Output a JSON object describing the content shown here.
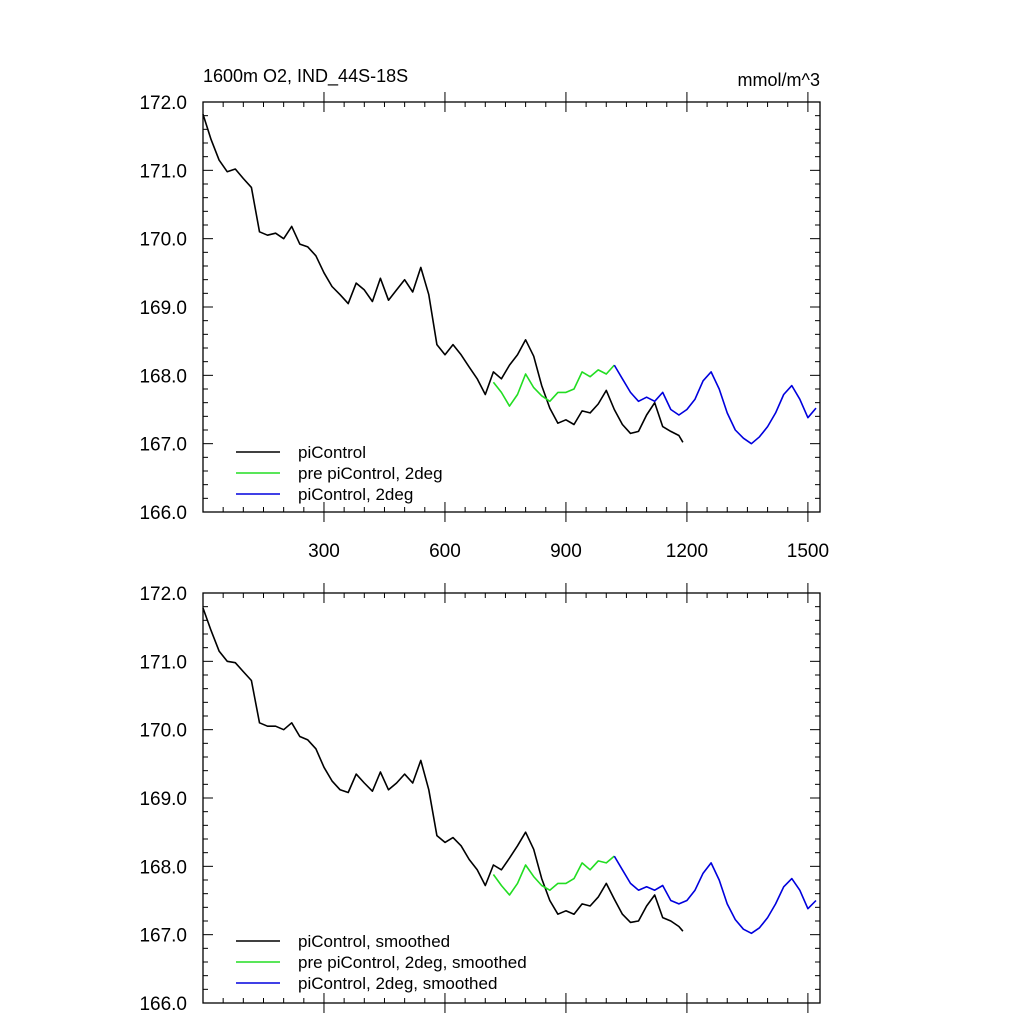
{
  "chart_data": [
    {
      "type": "line",
      "title": "1600m O2, IND_44S-18S",
      "units": "mmol/m^3",
      "xlim": [
        0,
        1530
      ],
      "ylim": [
        166.0,
        172.0
      ],
      "x_ticks": [
        300,
        600,
        900,
        1200,
        1500
      ],
      "x_tick_labels": [
        "300",
        "600",
        "900",
        "1200",
        "1500"
      ],
      "y_ticks": [
        166,
        167,
        168,
        169,
        170,
        171,
        172
      ],
      "y_tick_labels": [
        "166.0",
        "167.0",
        "168.0",
        "169.0",
        "170.0",
        "171.0",
        "172.0"
      ],
      "legend_position": "bottom-left",
      "series": [
        {
          "name": "piControl",
          "color": "#000000",
          "points": [
            [
              0,
              171.82
            ],
            [
              20,
              171.45
            ],
            [
              40,
              171.15
            ],
            [
              60,
              170.98
            ],
            [
              80,
              171.02
            ],
            [
              100,
              170.88
            ],
            [
              120,
              170.75
            ],
            [
              140,
              170.1
            ],
            [
              160,
              170.05
            ],
            [
              180,
              170.08
            ],
            [
              200,
              170.0
            ],
            [
              220,
              170.18
            ],
            [
              240,
              169.92
            ],
            [
              260,
              169.88
            ],
            [
              280,
              169.75
            ],
            [
              300,
              169.5
            ],
            [
              320,
              169.3
            ],
            [
              340,
              169.18
            ],
            [
              360,
              169.05
            ],
            [
              380,
              169.35
            ],
            [
              400,
              169.25
            ],
            [
              420,
              169.08
            ],
            [
              440,
              169.42
            ],
            [
              460,
              169.1
            ],
            [
              480,
              169.25
            ],
            [
              500,
              169.4
            ],
            [
              520,
              169.22
            ],
            [
              540,
              169.58
            ],
            [
              560,
              169.18
            ],
            [
              580,
              168.45
            ],
            [
              600,
              168.3
            ],
            [
              620,
              168.45
            ],
            [
              640,
              168.3
            ],
            [
              660,
              168.12
            ],
            [
              680,
              167.95
            ],
            [
              700,
              167.72
            ],
            [
              720,
              168.05
            ],
            [
              740,
              167.95
            ],
            [
              760,
              168.15
            ],
            [
              780,
              168.3
            ],
            [
              800,
              168.52
            ],
            [
              820,
              168.28
            ],
            [
              840,
              167.85
            ],
            [
              860,
              167.52
            ],
            [
              880,
              167.3
            ],
            [
              900,
              167.35
            ],
            [
              920,
              167.28
            ],
            [
              940,
              167.48
            ],
            [
              960,
              167.45
            ],
            [
              980,
              167.58
            ],
            [
              1000,
              167.78
            ],
            [
              1020,
              167.5
            ],
            [
              1040,
              167.28
            ],
            [
              1060,
              167.15
            ],
            [
              1080,
              167.18
            ],
            [
              1100,
              167.42
            ],
            [
              1120,
              167.6
            ],
            [
              1140,
              167.25
            ],
            [
              1160,
              167.18
            ],
            [
              1180,
              167.12
            ],
            [
              1190,
              167.02
            ]
          ]
        },
        {
          "name": "pre piControl, 2deg",
          "color": "#22dd22",
          "points": [
            [
              720,
              167.9
            ],
            [
              740,
              167.75
            ],
            [
              760,
              167.55
            ],
            [
              780,
              167.72
            ],
            [
              800,
              168.02
            ],
            [
              820,
              167.82
            ],
            [
              840,
              167.7
            ],
            [
              860,
              167.62
            ],
            [
              880,
              167.75
            ],
            [
              900,
              167.75
            ],
            [
              920,
              167.8
            ],
            [
              940,
              168.05
            ],
            [
              960,
              167.98
            ],
            [
              980,
              168.08
            ],
            [
              1000,
              168.02
            ],
            [
              1020,
              168.15
            ]
          ]
        },
        {
          "name": "piControl, 2deg",
          "color": "#0000dd",
          "points": [
            [
              1020,
              168.15
            ],
            [
              1040,
              167.95
            ],
            [
              1060,
              167.75
            ],
            [
              1080,
              167.62
            ],
            [
              1100,
              167.68
            ],
            [
              1120,
              167.62
            ],
            [
              1140,
              167.75
            ],
            [
              1160,
              167.5
            ],
            [
              1180,
              167.42
            ],
            [
              1200,
              167.5
            ],
            [
              1220,
              167.65
            ],
            [
              1240,
              167.92
            ],
            [
              1260,
              168.05
            ],
            [
              1280,
              167.8
            ],
            [
              1300,
              167.45
            ],
            [
              1320,
              167.2
            ],
            [
              1340,
              167.08
            ],
            [
              1360,
              167.0
            ],
            [
              1380,
              167.1
            ],
            [
              1400,
              167.25
            ],
            [
              1420,
              167.45
            ],
            [
              1440,
              167.72
            ],
            [
              1460,
              167.85
            ],
            [
              1480,
              167.65
            ],
            [
              1500,
              167.38
            ],
            [
              1520,
              167.52
            ]
          ]
        }
      ]
    },
    {
      "type": "line",
      "title": "",
      "xlim": [
        0,
        1530
      ],
      "ylim": [
        166.0,
        172.0
      ],
      "x_ticks": [
        300,
        600,
        900,
        1200,
        1500
      ],
      "y_ticks": [
        166,
        167,
        168,
        169,
        170,
        171,
        172
      ],
      "y_tick_labels": [
        "166.0",
        "167.0",
        "168.0",
        "169.0",
        "170.0",
        "171.0",
        "172.0"
      ],
      "legend_position": "bottom-left",
      "series": [
        {
          "name": "piControl, smoothed",
          "color": "#000000",
          "points": [
            [
              0,
              171.78
            ],
            [
              20,
              171.45
            ],
            [
              40,
              171.15
            ],
            [
              60,
              171.0
            ],
            [
              80,
              170.98
            ],
            [
              100,
              170.85
            ],
            [
              120,
              170.72
            ],
            [
              140,
              170.1
            ],
            [
              160,
              170.05
            ],
            [
              180,
              170.05
            ],
            [
              200,
              170.0
            ],
            [
              220,
              170.1
            ],
            [
              240,
              169.9
            ],
            [
              260,
              169.85
            ],
            [
              280,
              169.72
            ],
            [
              300,
              169.45
            ],
            [
              320,
              169.25
            ],
            [
              340,
              169.12
            ],
            [
              360,
              169.08
            ],
            [
              380,
              169.35
            ],
            [
              400,
              169.22
            ],
            [
              420,
              169.1
            ],
            [
              440,
              169.38
            ],
            [
              460,
              169.12
            ],
            [
              480,
              169.22
            ],
            [
              500,
              169.35
            ],
            [
              520,
              169.22
            ],
            [
              540,
              169.55
            ],
            [
              560,
              169.12
            ],
            [
              580,
              168.45
            ],
            [
              600,
              168.35
            ],
            [
              620,
              168.42
            ],
            [
              640,
              168.3
            ],
            [
              660,
              168.1
            ],
            [
              680,
              167.95
            ],
            [
              700,
              167.72
            ],
            [
              720,
              168.02
            ],
            [
              740,
              167.95
            ],
            [
              760,
              168.12
            ],
            [
              780,
              168.3
            ],
            [
              800,
              168.5
            ],
            [
              820,
              168.25
            ],
            [
              840,
              167.82
            ],
            [
              860,
              167.5
            ],
            [
              880,
              167.3
            ],
            [
              900,
              167.35
            ],
            [
              920,
              167.3
            ],
            [
              940,
              167.45
            ],
            [
              960,
              167.42
            ],
            [
              980,
              167.55
            ],
            [
              1000,
              167.75
            ],
            [
              1020,
              167.52
            ],
            [
              1040,
              167.3
            ],
            [
              1060,
              167.18
            ],
            [
              1080,
              167.2
            ],
            [
              1100,
              167.42
            ],
            [
              1120,
              167.58
            ],
            [
              1140,
              167.25
            ],
            [
              1160,
              167.2
            ],
            [
              1180,
              167.12
            ],
            [
              1190,
              167.05
            ]
          ]
        },
        {
          "name": "pre piControl, 2deg, smoothed",
          "color": "#22dd22",
          "points": [
            [
              720,
              167.88
            ],
            [
              740,
              167.72
            ],
            [
              760,
              167.58
            ],
            [
              780,
              167.75
            ],
            [
              800,
              168.02
            ],
            [
              820,
              167.85
            ],
            [
              840,
              167.72
            ],
            [
              860,
              167.65
            ],
            [
              880,
              167.75
            ],
            [
              900,
              167.75
            ],
            [
              920,
              167.82
            ],
            [
              940,
              168.05
            ],
            [
              960,
              167.95
            ],
            [
              980,
              168.08
            ],
            [
              1000,
              168.05
            ],
            [
              1020,
              168.15
            ]
          ]
        },
        {
          "name": "piControl, 2deg, smoothed",
          "color": "#0000dd",
          "points": [
            [
              1020,
              168.15
            ],
            [
              1040,
              167.95
            ],
            [
              1060,
              167.75
            ],
            [
              1080,
              167.65
            ],
            [
              1100,
              167.7
            ],
            [
              1120,
              167.65
            ],
            [
              1140,
              167.72
            ],
            [
              1160,
              167.5
            ],
            [
              1180,
              167.45
            ],
            [
              1200,
              167.5
            ],
            [
              1220,
              167.65
            ],
            [
              1240,
              167.9
            ],
            [
              1260,
              168.05
            ],
            [
              1280,
              167.8
            ],
            [
              1300,
              167.45
            ],
            [
              1320,
              167.22
            ],
            [
              1340,
              167.08
            ],
            [
              1360,
              167.02
            ],
            [
              1380,
              167.1
            ],
            [
              1400,
              167.25
            ],
            [
              1420,
              167.45
            ],
            [
              1440,
              167.7
            ],
            [
              1460,
              167.82
            ],
            [
              1480,
              167.65
            ],
            [
              1500,
              167.38
            ],
            [
              1520,
              167.5
            ]
          ]
        }
      ]
    }
  ]
}
